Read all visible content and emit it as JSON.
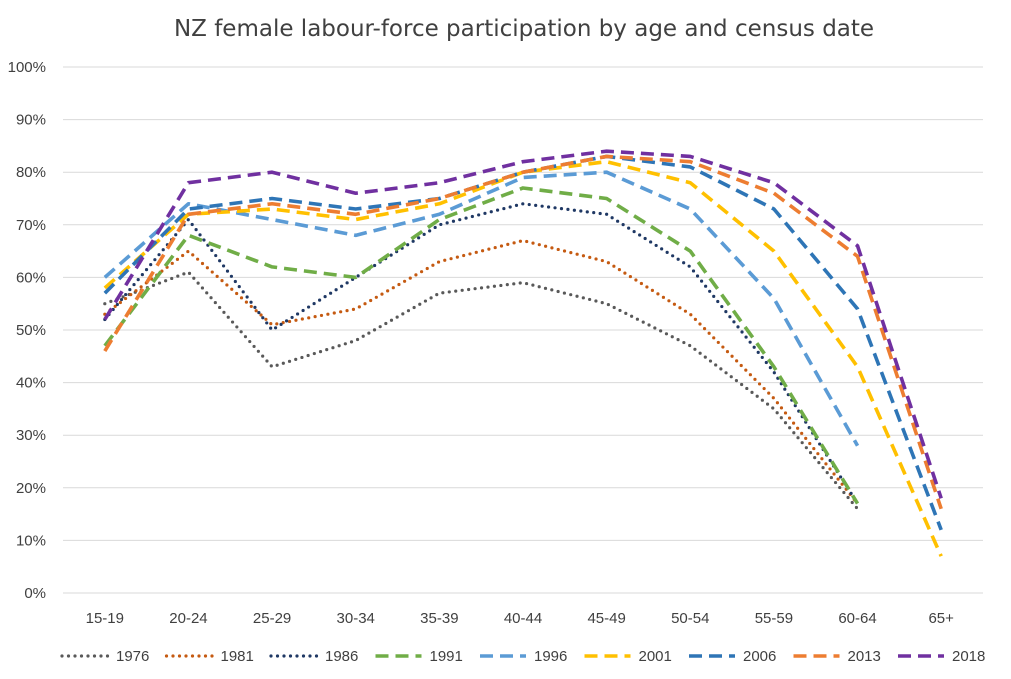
{
  "chart_data": {
    "type": "line",
    "title": "NZ female labour-force participation by age and census date",
    "xlabel": "",
    "ylabel": "",
    "ylim": [
      0,
      100
    ],
    "y_tick_labels": [
      "0%",
      "10%",
      "20%",
      "30%",
      "40%",
      "50%",
      "60%",
      "70%",
      "80%",
      "90%",
      "100%"
    ],
    "grid": true,
    "legend_position": "bottom",
    "categories": [
      "15-19",
      "20-24",
      "25-29",
      "30-34",
      "35-39",
      "40-44",
      "45-49",
      "50-54",
      "55-59",
      "60-64",
      "65+"
    ],
    "series": [
      {
        "name": "1976",
        "color": "#595959",
        "style": "dotted",
        "values": [
          55,
          61,
          43,
          48,
          57,
          59,
          55,
          47,
          35,
          16,
          null
        ]
      },
      {
        "name": "1981",
        "color": "#c55a11",
        "style": "dotted",
        "values": [
          53,
          65,
          51,
          54,
          63,
          67,
          63,
          53,
          37,
          17,
          null
        ]
      },
      {
        "name": "1986",
        "color": "#1f3864",
        "style": "dotted",
        "values": [
          52,
          71,
          50,
          60,
          70,
          74,
          72,
          62,
          42,
          17,
          null
        ]
      },
      {
        "name": "1991",
        "color": "#70ad47",
        "style": "dashed",
        "values": [
          47,
          68,
          62,
          60,
          71,
          77,
          75,
          65,
          43,
          17,
          null
        ]
      },
      {
        "name": "1996",
        "color": "#5b9bd5",
        "style": "dashed",
        "values": [
          60,
          74,
          71,
          68,
          72,
          79,
          80,
          73,
          56,
          28,
          null
        ]
      },
      {
        "name": "2001",
        "color": "#ffc000",
        "style": "dashed",
        "values": [
          58,
          72,
          73,
          71,
          74,
          80,
          82,
          78,
          65,
          43,
          7
        ]
      },
      {
        "name": "2006",
        "color": "#2e75b6",
        "style": "dashed",
        "values": [
          57,
          73,
          75,
          73,
          75,
          80,
          83,
          81,
          73,
          54,
          12
        ]
      },
      {
        "name": "2013",
        "color": "#ed7d31",
        "style": "dashed",
        "values": [
          46,
          72,
          74,
          72,
          75,
          80,
          83,
          82,
          76,
          64,
          16
        ]
      },
      {
        "name": "2018",
        "color": "#7030a0",
        "style": "dashed",
        "values": [
          52,
          78,
          80,
          76,
          78,
          82,
          84,
          83,
          78,
          66,
          18
        ]
      }
    ]
  }
}
